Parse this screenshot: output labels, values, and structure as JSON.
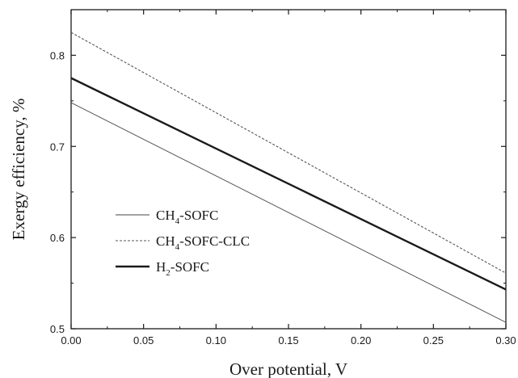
{
  "chart_data": {
    "type": "line",
    "title": "",
    "xlabel": "Over potential, V",
    "ylabel": "Exergy efficiency, %",
    "xlim": [
      0.0,
      0.3
    ],
    "ylim": [
      0.5,
      0.85
    ],
    "xticks": [
      "0.00",
      "0.05",
      "0.10",
      "0.15",
      "0.20",
      "0.25",
      "0.30"
    ],
    "yticks": [
      "0.5",
      "0.6",
      "0.7",
      "0.8"
    ],
    "grid": false,
    "legend_position": "left-center",
    "series": [
      {
        "name_main": "CH",
        "name_sub": "4",
        "name_rest": "-SOFC",
        "style": "thin-solid",
        "x": [
          0.0,
          0.3
        ],
        "y": [
          0.748,
          0.507
        ]
      },
      {
        "name_main": "CH",
        "name_sub": "4",
        "name_rest": "-SOFC-CLC",
        "style": "dotted",
        "x": [
          0.0,
          0.3
        ],
        "y": [
          0.825,
          0.561
        ]
      },
      {
        "name_main": "H",
        "name_sub": "2",
        "name_rest": "-SOFC",
        "style": "thick-solid",
        "x": [
          0.0,
          0.3
        ],
        "y": [
          0.775,
          0.543
        ]
      }
    ],
    "colors": {
      "line": "#1a1a1a",
      "dotted": "#555555",
      "axis": "#1a1a1a"
    }
  }
}
